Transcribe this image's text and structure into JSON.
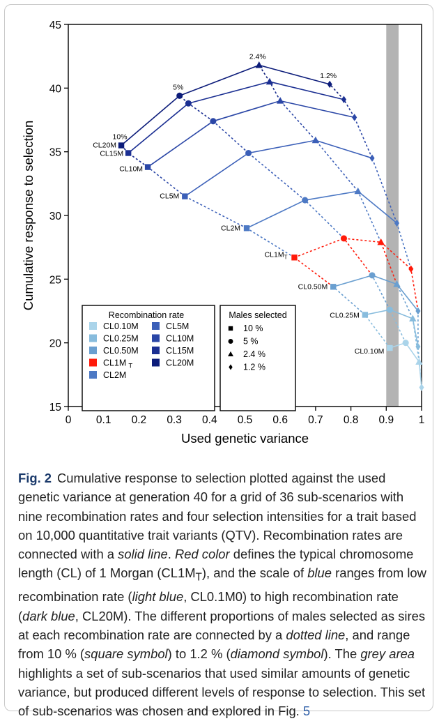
{
  "chart_data": {
    "type": "scatter",
    "xlabel": "Used genetic variance",
    "ylabel": "Cumulative response to selection",
    "xlim": [
      0,
      1
    ],
    "ylim": [
      15,
      45
    ],
    "xticks": [
      0,
      0.1,
      0.2,
      0.3,
      0.4,
      0.5,
      0.6,
      0.7,
      0.8,
      0.9,
      1
    ],
    "xtick_labels": [
      "0",
      "0.1",
      "0.2",
      "0.3",
      "0.4",
      "0.5",
      "0.6",
      "0.7",
      "0.8",
      "0.9",
      "1"
    ],
    "yticks": [
      15,
      20,
      25,
      30,
      35,
      40,
      45
    ],
    "ytick_labels": [
      "15",
      "20",
      "25",
      "30",
      "35",
      "40",
      "45"
    ],
    "grid": false,
    "highlight_band": {
      "x": [
        0.9,
        0.935
      ],
      "color": "#b3b3b3"
    },
    "selection_levels": [
      "10 %",
      "5 %",
      "2.4 %",
      "1.2 %"
    ],
    "selection_markers": [
      "square",
      "circle",
      "triangle",
      "diamond"
    ],
    "series": [
      {
        "name": "CL0.10M",
        "color": "#aad4ea",
        "points": [
          [
            0.91,
            19.6
          ],
          [
            0.955,
            20.0
          ],
          [
            0.993,
            18.5
          ],
          [
            1.0,
            16.5
          ]
        ]
      },
      {
        "name": "CL0.25M",
        "color": "#88bcdd",
        "points": [
          [
            0.84,
            22.2
          ],
          [
            0.91,
            22.6
          ],
          [
            0.975,
            21.9
          ],
          [
            0.99,
            19.7
          ]
        ]
      },
      {
        "name": "CL0.50M",
        "color": "#6a9fd0",
        "points": [
          [
            0.75,
            24.4
          ],
          [
            0.86,
            25.3
          ],
          [
            0.93,
            24.6
          ],
          [
            0.99,
            22.5
          ]
        ]
      },
      {
        "name": "CL1M_T",
        "color": "#ff1a0a",
        "points": [
          [
            0.64,
            26.7
          ],
          [
            0.78,
            28.2
          ],
          [
            0.885,
            27.9
          ],
          [
            0.97,
            25.8
          ]
        ]
      },
      {
        "name": "CL2M",
        "color": "#4d79c4",
        "points": [
          [
            0.505,
            29.0
          ],
          [
            0.67,
            31.2
          ],
          [
            0.82,
            31.9
          ],
          [
            0.93,
            29.4
          ]
        ]
      },
      {
        "name": "CL5M",
        "color": "#3b5fb8",
        "points": [
          [
            0.33,
            31.5
          ],
          [
            0.51,
            34.9
          ],
          [
            0.7,
            35.9
          ],
          [
            0.86,
            34.5
          ]
        ]
      },
      {
        "name": "CL10M",
        "color": "#2a46a6",
        "points": [
          [
            0.225,
            33.8
          ],
          [
            0.41,
            37.4
          ],
          [
            0.6,
            39.0
          ],
          [
            0.81,
            37.7
          ]
        ]
      },
      {
        "name": "CL15M",
        "color": "#1b2f92",
        "points": [
          [
            0.17,
            34.9
          ],
          [
            0.34,
            38.8
          ],
          [
            0.57,
            40.5
          ],
          [
            0.78,
            39.1
          ]
        ]
      },
      {
        "name": "CL20M",
        "color": "#0c1c7a",
        "points": [
          [
            0.15,
            35.5
          ],
          [
            0.315,
            39.4
          ],
          [
            0.54,
            41.8
          ],
          [
            0.74,
            40.3
          ]
        ]
      }
    ],
    "point_labels": [
      {
        "text": "CL20M",
        "series": "CL20M"
      },
      {
        "text": "CL15M",
        "series": "CL15M"
      },
      {
        "text": "CL10M",
        "series": "CL10M"
      },
      {
        "text": "CL5M",
        "series": "CL5M"
      },
      {
        "text": "CL2M",
        "series": "CL2M"
      },
      {
        "text": "CL1M",
        "sub": "T",
        "series": "CL1M_T"
      },
      {
        "text": "CL0.50M",
        "series": "CL0.50M"
      },
      {
        "text": "CL0.25M",
        "series": "CL0.25M"
      },
      {
        "text": "CL0.10M",
        "series": "CL0.10M"
      }
    ],
    "percent_labels": [
      {
        "text": "10%",
        "level": 0
      },
      {
        "text": "5%",
        "level": 1
      },
      {
        "text": "2.4%",
        "level": 2
      },
      {
        "text": "1.2%",
        "level": 3
      }
    ],
    "legend_recombination": {
      "title": "Recombination rate",
      "columns": [
        [
          {
            "label": "CL0.10M",
            "color": "#aad4ea"
          },
          {
            "label": "CL0.25M",
            "color": "#88bcdd"
          },
          {
            "label": "CL0.50M",
            "color": "#6a9fd0"
          },
          {
            "label": "CL1M",
            "sub": "T",
            "color": "#ff1a0a"
          },
          {
            "label": "CL2M",
            "color": "#4d79c4"
          }
        ],
        [
          {
            "label": "CL5M",
            "color": "#3b5fb8"
          },
          {
            "label": "CL10M",
            "color": "#2a46a6"
          },
          {
            "label": "CL15M",
            "color": "#1b2f92"
          },
          {
            "label": "CL20M",
            "color": "#0c1c7a"
          }
        ]
      ]
    },
    "legend_males": {
      "title": "Males selected",
      "entries": [
        {
          "label": "10 %",
          "marker": "square"
        },
        {
          "label": "5 %",
          "marker": "circle"
        },
        {
          "label": "2.4 %",
          "marker": "triangle"
        },
        {
          "label": "1.2 %",
          "marker": "diamond"
        }
      ]
    }
  },
  "caption": {
    "label": "Fig. 2",
    "t1": "Cumulative response to selection plotted against the used genetic variance at generation 40 for a grid of 36 sub-scenarios with nine recombination rates and four selection intensities for a trait based on 10,000 quantitative trait variants (QTV). Recombination rates are connected with a ",
    "em1": "solid line",
    "t2": ". ",
    "em2": "Red color",
    "t3": " defines the typical chromosome length (CL) of 1 Morgan (CL1M",
    "sub": "T",
    "t4": "), and the scale of ",
    "em3": "blue",
    "t5": " ranges from low recombination rate (",
    "em4": "light blue",
    "t6": ", CL0.1M0) to high recombination rate (",
    "em5": "dark blue",
    "t7": ", CL20M). The different proportions of males selected as sires at each recombination rate are connected by a ",
    "em6": "dotted line",
    "t8": ", and range from 10 % (",
    "em7": "square symbol",
    "t9": ") to 1.2 % (",
    "em8": "diamond symbol",
    "t10": "). The ",
    "em9": "grey area",
    "t11": " highlights a set of sub-scenarios that used similar amounts of genetic variance, but produced different levels of response to selection. This set of sub-scenarios was chosen and explored in Fig. ",
    "figref": "5"
  }
}
